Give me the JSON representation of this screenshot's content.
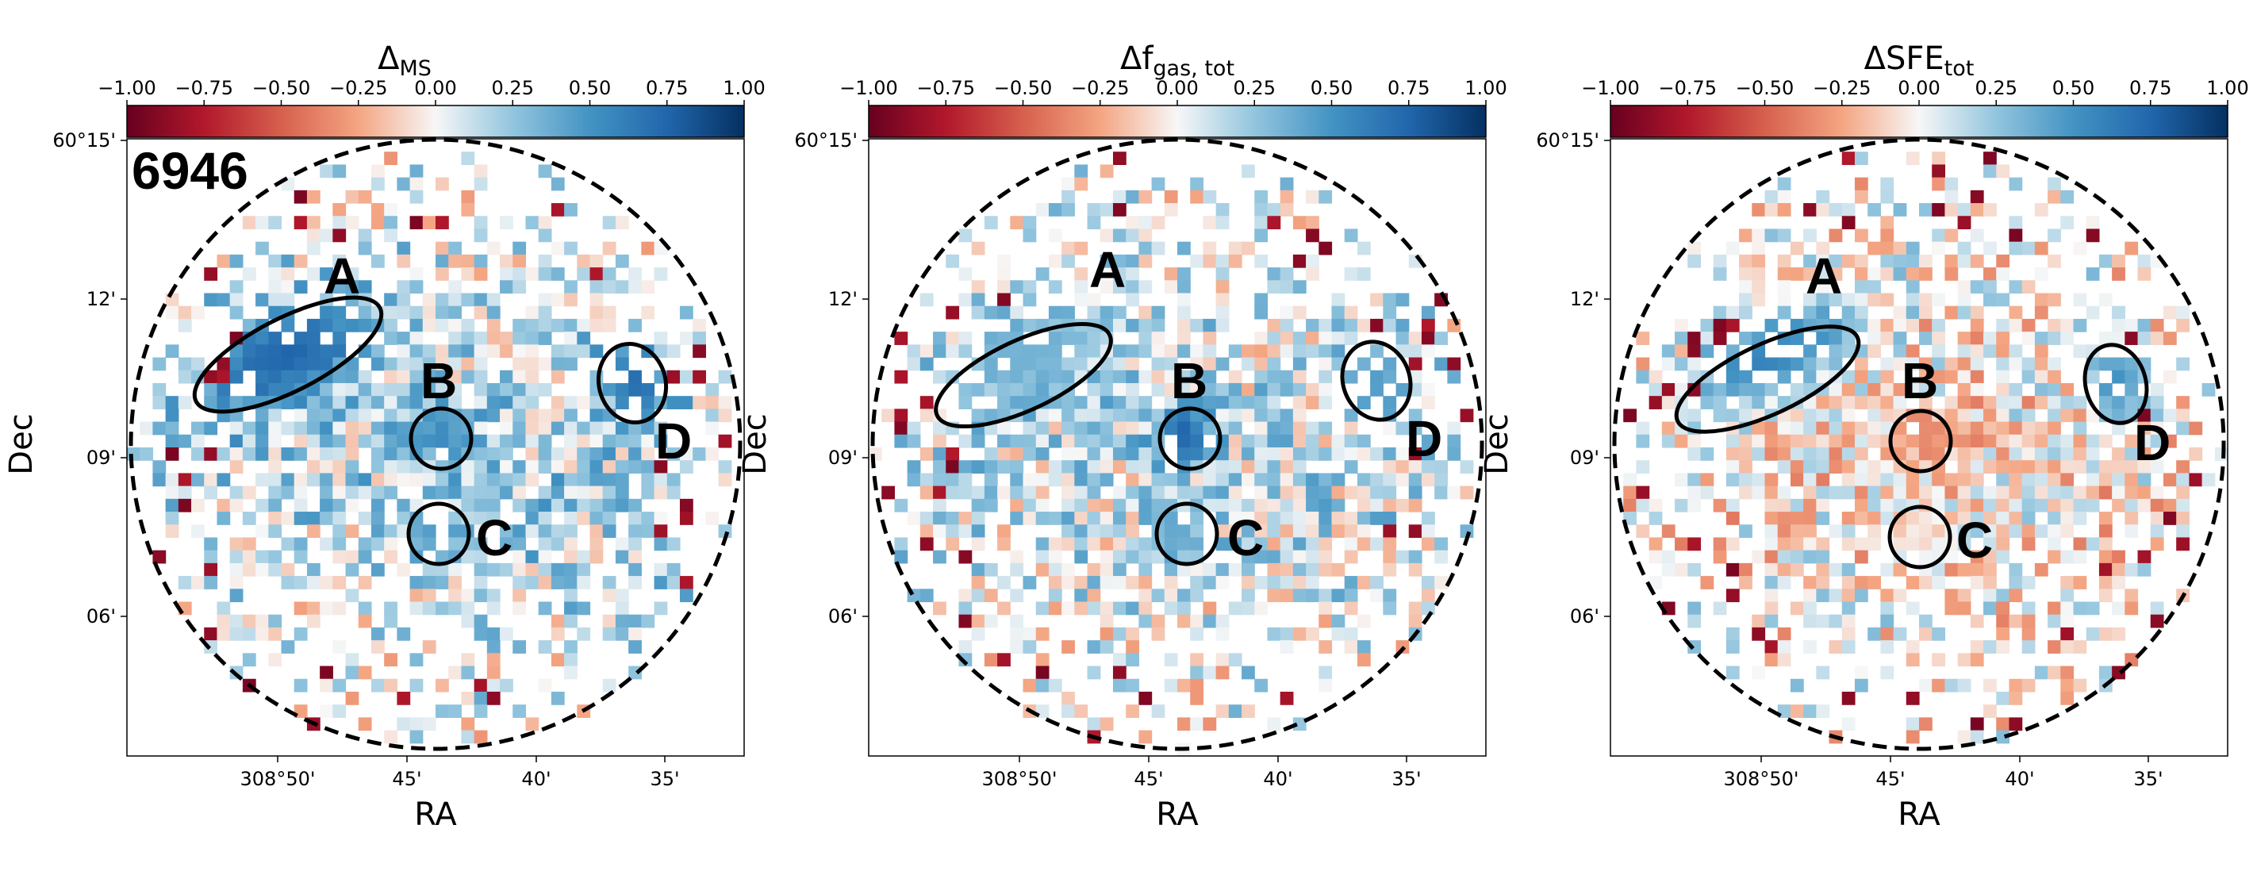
{
  "figure": {
    "galaxy_id": "6946",
    "colors": {
      "negative_end": "#67001f",
      "negative_mid": "#d6604d",
      "neutral": "#f7f7f7",
      "positive_mid": "#4393c3",
      "positive_end": "#053061"
    }
  },
  "chart_data": [
    {
      "type": "heatmap",
      "title_main": "Δ",
      "title_sub": "MS",
      "colorbar": {
        "range": [
          -1.0,
          1.0
        ],
        "ticks": [
          -1.0,
          -0.75,
          -0.5,
          -0.25,
          0.0,
          0.25,
          0.5,
          0.75,
          1.0
        ],
        "tick_labels": [
          "−1.00",
          "−0.75",
          "−0.50",
          "−0.25",
          "0.00",
          "0.25",
          "0.50",
          "0.75",
          "1.00"
        ]
      },
      "xlabel": "RA",
      "ylabel": "Dec",
      "x_tick_labels": [
        "308°50'",
        "45'",
        "40'",
        "35'"
      ],
      "y_tick_labels": [
        "60°15'",
        "12'",
        "09'",
        "06'"
      ],
      "regions": [
        {
          "label": "A",
          "mean_value": 0.75
        },
        {
          "label": "B",
          "mean_value": 0.55
        },
        {
          "label": "C",
          "mean_value": 0.45
        },
        {
          "label": "D",
          "mean_value": 0.7
        }
      ],
      "seed": 7
    },
    {
      "type": "heatmap",
      "title_main": "Δf",
      "title_sub": "gas, tot",
      "colorbar": {
        "range": [
          -1.0,
          1.0
        ],
        "ticks": [
          -1.0,
          -0.75,
          -0.5,
          -0.25,
          0.0,
          0.25,
          0.5,
          0.75,
          1.0
        ],
        "tick_labels": [
          "−1.00",
          "−0.75",
          "−0.50",
          "−0.25",
          "0.00",
          "0.25",
          "0.50",
          "0.75",
          "1.00"
        ]
      },
      "xlabel": "RA",
      "ylabel": "Dec",
      "x_tick_labels": [
        "308°50'",
        "45'",
        "40'",
        "35'"
      ],
      "y_tick_labels": [
        "60°15'",
        "12'",
        "09'",
        "06'"
      ],
      "regions": [
        {
          "label": "A",
          "mean_value": 0.35
        },
        {
          "label": "B",
          "mean_value": 0.75
        },
        {
          "label": "C",
          "mean_value": 0.4
        },
        {
          "label": "D",
          "mean_value": 0.45
        }
      ],
      "seed": 19
    },
    {
      "type": "heatmap",
      "title_main": "ΔSFE",
      "title_sub": "tot",
      "colorbar": {
        "range": [
          -1.0,
          1.0
        ],
        "ticks": [
          -1.0,
          -0.75,
          -0.5,
          -0.25,
          0.0,
          0.25,
          0.5,
          0.75,
          1.0
        ],
        "tick_labels": [
          "−1.00",
          "−0.75",
          "−0.50",
          "−0.25",
          "0.00",
          "0.25",
          "0.50",
          "0.75",
          "1.00"
        ]
      },
      "xlabel": "RA",
      "ylabel": "Dec",
      "x_tick_labels": [
        "308°50'",
        "45'",
        "40'",
        "35'"
      ],
      "y_tick_labels": [
        "60°15'",
        "12'",
        "09'",
        "06'"
      ],
      "regions": [
        {
          "label": "A",
          "mean_value": 0.6
        },
        {
          "label": "B",
          "mean_value": -0.35
        },
        {
          "label": "C",
          "mean_value": -0.05
        },
        {
          "label": "D",
          "mean_value": 0.5
        }
      ],
      "seed": 31
    }
  ]
}
